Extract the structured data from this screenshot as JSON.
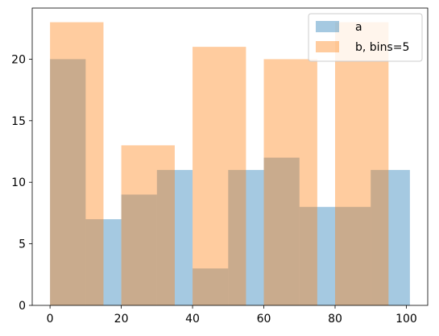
{
  "chart_data": {
    "type": "bar",
    "title": "",
    "xlabel": "",
    "ylabel": "",
    "xlim": [
      -5,
      106
    ],
    "ylim": [
      0,
      24.15
    ],
    "xticks": [
      0,
      20,
      40,
      60,
      80,
      100
    ],
    "yticks": [
      0,
      5,
      10,
      15,
      20
    ],
    "grid": false,
    "legend_position": "upper right",
    "series": [
      {
        "name": "a",
        "color": "#1f77b4",
        "alpha": 0.4,
        "bins": [
          {
            "x0": 0,
            "x1": 10,
            "value": 20
          },
          {
            "x0": 10,
            "x1": 20,
            "value": 7
          },
          {
            "x0": 20,
            "x1": 30,
            "value": 9
          },
          {
            "x0": 30,
            "x1": 40,
            "value": 11
          },
          {
            "x0": 40,
            "x1": 50,
            "value": 3
          },
          {
            "x0": 50,
            "x1": 60,
            "value": 11
          },
          {
            "x0": 60,
            "x1": 70,
            "value": 12
          },
          {
            "x0": 70,
            "x1": 80,
            "value": 8
          },
          {
            "x0": 80,
            "x1": 90,
            "value": 8
          },
          {
            "x0": 90,
            "x1": 101,
            "value": 11
          }
        ]
      },
      {
        "name": "b, bins=5",
        "color": "#ff7f0e",
        "alpha": 0.4,
        "bins": [
          {
            "x0": 0,
            "x1": 15,
            "value": 23
          },
          {
            "x0": 20,
            "x1": 35,
            "value": 13
          },
          {
            "x0": 40,
            "x1": 55,
            "value": 21
          },
          {
            "x0": 60,
            "x1": 75,
            "value": 20
          },
          {
            "x0": 80,
            "x1": 95,
            "value": 23
          }
        ]
      }
    ]
  }
}
